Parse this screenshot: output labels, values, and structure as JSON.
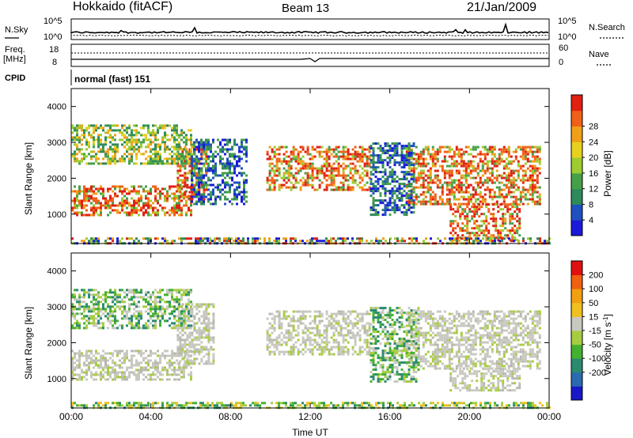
{
  "header": {
    "station": "Hokkaido (fitACF)",
    "beam": "Beam 13",
    "date": "21/Jan/2009"
  },
  "noise_panel": {
    "left_label": "N.Sky",
    "right_label": "N.Search",
    "left_ticks": [
      "10^5",
      "10^0"
    ],
    "right_ticks": [
      "10^5",
      "10^0"
    ]
  },
  "freq_panel": {
    "left_label_1": "Freq.",
    "left_label_2": "[MHz]",
    "left_ticks": [
      "18",
      "8"
    ],
    "right_label": "Nave",
    "right_ticks": [
      "60",
      "0"
    ]
  },
  "cpid_panel": {
    "label": "CPID",
    "value": "normal (fast) 151"
  },
  "chart_data": [
    {
      "type": "heatmap",
      "title": "",
      "xlabel": "",
      "ylabel": "Slant Range [km]",
      "x_ticks": [
        "00:00",
        "04:00",
        "08:00",
        "12:00",
        "16:00",
        "20:00",
        "00:00"
      ],
      "y_ticks": [
        1000,
        2000,
        3000,
        4000
      ],
      "ylim": [
        180,
        4500
      ],
      "colorbar": {
        "label": "Power [dB]",
        "ticks": [
          "4",
          "8",
          "12",
          "16",
          "20",
          "24",
          "28"
        ],
        "colors": [
          "#1a1ad8",
          "#2050c0",
          "#2e8a5a",
          "#46a04a",
          "#9ccc30",
          "#e8d020",
          "#f0a018",
          "#f06018",
          "#e02010"
        ]
      },
      "echo_bands": [
        {
          "t0": 0.0,
          "t1": 6.0,
          "r0": 1000,
          "r1": 1800,
          "level": "high"
        },
        {
          "t0": 5.3,
          "t1": 6.8,
          "r0": 1400,
          "r1": 2900,
          "level": "high"
        },
        {
          "t0": 9.8,
          "t1": 15.0,
          "r0": 1700,
          "r1": 2900,
          "level": "high"
        },
        {
          "t0": 16.8,
          "t1": 23.5,
          "r0": 1300,
          "r1": 2900,
          "level": "high"
        },
        {
          "t0": 0.0,
          "t1": 6.0,
          "r0": 2400,
          "r1": 3500,
          "level": "mid"
        },
        {
          "t0": 6.0,
          "t1": 8.8,
          "r0": 1300,
          "r1": 3100,
          "level": "low"
        },
        {
          "t0": 15.0,
          "t1": 17.2,
          "r0": 1000,
          "r1": 3000,
          "level": "low"
        },
        {
          "t0": 19.0,
          "t1": 22.5,
          "r0": 300,
          "r1": 1300,
          "level": "high"
        },
        {
          "t0": 0.0,
          "t1": 24.0,
          "r0": 180,
          "r1": 350,
          "level": "mix"
        }
      ]
    },
    {
      "type": "heatmap",
      "title": "",
      "xlabel": "Time UT",
      "ylabel": "Slant Range [km]",
      "x_ticks": [
        "00:00",
        "04:00",
        "08:00",
        "12:00",
        "16:00",
        "20:00",
        "00:00"
      ],
      "y_ticks": [
        1000,
        2000,
        3000,
        4000
      ],
      "ylim": [
        180,
        4500
      ],
      "colorbar": {
        "label": "Velocity [m s",
        "label_sup": "-1",
        "label_end": "]",
        "ticks": [
          "200",
          "100",
          "50",
          "15",
          "-15",
          "-50",
          "-100",
          "-200"
        ],
        "colors": [
          "#1818c8",
          "#2a6ab0",
          "#2a8a70",
          "#44b030",
          "#a8cc40",
          "#c8c8c0",
          "#f0c020",
          "#f0a010",
          "#f06010",
          "#e01010"
        ]
      },
      "echo_bands": [
        {
          "t0": 0.0,
          "t1": 6.0,
          "r0": 1000,
          "r1": 1800,
          "level": "grey"
        },
        {
          "t0": 5.3,
          "t1": 7.2,
          "r0": 1400,
          "r1": 3100,
          "level": "grey"
        },
        {
          "t0": 9.8,
          "t1": 15.0,
          "r0": 1700,
          "r1": 2900,
          "level": "grey"
        },
        {
          "t0": 16.8,
          "t1": 23.5,
          "r0": 1300,
          "r1": 2900,
          "level": "grey"
        },
        {
          "t0": 0.0,
          "t1": 6.0,
          "r0": 2400,
          "r1": 3500,
          "level": "greygreen"
        },
        {
          "t0": 15.0,
          "t1": 17.5,
          "r0": 900,
          "r1": 3000,
          "level": "green"
        },
        {
          "t0": 19.0,
          "t1": 22.5,
          "r0": 700,
          "r1": 1300,
          "level": "grey"
        },
        {
          "t0": 0.0,
          "t1": 24.0,
          "r0": 180,
          "r1": 350,
          "level": "greenmix"
        }
      ]
    }
  ]
}
